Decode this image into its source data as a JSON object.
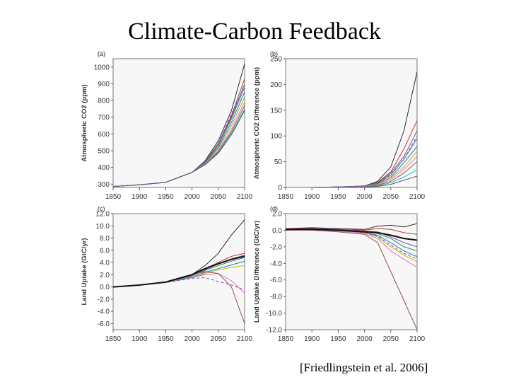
{
  "slide": {
    "title": "Climate-Carbon Feedback",
    "citation": "[Friedlingstein et al. 2006]"
  },
  "palette": [
    "#2b2b2b",
    "#c0392b",
    "#7a4fb0",
    "#2e8b57",
    "#1f77b4",
    "#c9b400",
    "#e377c2",
    "#8c564b",
    "#17becf",
    "#555555",
    "#d62728"
  ],
  "chart_data": [
    {
      "type": "line",
      "panel_label": "(a)",
      "ylabel": "Atmospheric CO2 (ppm)",
      "xlim": [
        1850,
        2100
      ],
      "ylim": [
        280,
        1050
      ],
      "xticks": [
        "1850",
        "1900",
        "1950",
        "2000",
        "2050",
        "2100"
      ],
      "yticks": [
        "300",
        "400",
        "500",
        "600",
        "700",
        "800",
        "900",
        "1000"
      ],
      "x": [
        1850,
        1900,
        1950,
        2000,
        2025,
        2050,
        2075,
        2100
      ],
      "series": [
        {
          "values": [
            286,
            296,
            311,
            370,
            440,
            560,
            740,
            1020
          ]
        },
        {
          "values": [
            286,
            296,
            311,
            370,
            435,
            545,
            710,
            930
          ]
        },
        {
          "values": [
            286,
            296,
            311,
            370,
            432,
            540,
            700,
            900
          ]
        },
        {
          "values": [
            286,
            296,
            311,
            370,
            430,
            530,
            690,
            880
          ]
        },
        {
          "values": [
            286,
            296,
            311,
            370,
            428,
            520,
            670,
            850
          ]
        },
        {
          "values": [
            286,
            296,
            311,
            370,
            425,
            510,
            650,
            820
          ]
        },
        {
          "values": [
            286,
            296,
            311,
            370,
            422,
            500,
            630,
            790
          ]
        },
        {
          "values": [
            286,
            296,
            311,
            370,
            420,
            495,
            615,
            770
          ]
        },
        {
          "values": [
            286,
            296,
            311,
            370,
            418,
            490,
            605,
            750
          ]
        },
        {
          "values": [
            286,
            296,
            311,
            370,
            416,
            485,
            595,
            740
          ]
        },
        {
          "values": [
            286,
            296,
            311,
            370,
            430,
            540,
            720,
            890
          ],
          "dashed": true
        }
      ]
    },
    {
      "type": "line",
      "panel_label": "(b)",
      "ylabel": "Atmospheric CO2 Difference (ppm)",
      "xlim": [
        1850,
        2100
      ],
      "ylim": [
        0,
        250
      ],
      "xticks": [
        "1850",
        "1900",
        "1950",
        "2000",
        "2050",
        "2100"
      ],
      "yticks": [
        "0",
        "50",
        "100",
        "150",
        "200",
        "250"
      ],
      "x": [
        1850,
        1900,
        1950,
        2000,
        2025,
        2050,
        2075,
        2100
      ],
      "series": [
        {
          "values": [
            0,
            0,
            1,
            3,
            12,
            40,
            110,
            225
          ]
        },
        {
          "values": [
            0,
            0,
            1,
            3,
            10,
            30,
            75,
            130
          ]
        },
        {
          "values": [
            0,
            0,
            1,
            2,
            9,
            28,
            60,
            110
          ]
        },
        {
          "values": [
            0,
            0,
            1,
            2,
            8,
            24,
            55,
            95
          ]
        },
        {
          "values": [
            0,
            0,
            1,
            2,
            7,
            20,
            48,
            80
          ]
        },
        {
          "values": [
            0,
            0,
            0,
            2,
            6,
            18,
            40,
            70
          ]
        },
        {
          "values": [
            0,
            0,
            0,
            2,
            5,
            15,
            35,
            60
          ]
        },
        {
          "values": [
            0,
            0,
            0,
            1,
            4,
            12,
            28,
            50
          ]
        },
        {
          "values": [
            0,
            0,
            0,
            1,
            3,
            9,
            20,
            35
          ]
        },
        {
          "values": [
            0,
            0,
            0,
            1,
            2,
            6,
            14,
            22
          ]
        },
        {
          "values": [
            0,
            0,
            1,
            3,
            9,
            25,
            55,
            100
          ],
          "dashed": true
        }
      ]
    },
    {
      "type": "line",
      "panel_label": "(c)",
      "ylabel": "Land Uptake (GtC/yr)",
      "xlim": [
        1850,
        2100
      ],
      "ylim": [
        -7,
        12
      ],
      "xticks": [
        "1850",
        "1900",
        "1950",
        "2000",
        "2050",
        "2100"
      ],
      "yticks": [
        "-6.0",
        "-4.0",
        "-2.0",
        "0.0",
        "2.0",
        "4.0",
        "6.0",
        "8.0",
        "10.0",
        "12.0"
      ],
      "x": [
        1850,
        1900,
        1950,
        2000,
        2025,
        2050,
        2075,
        2100
      ],
      "series": [
        {
          "values": [
            0,
            0.3,
            0.8,
            2.0,
            3.5,
            5.5,
            8.5,
            11.0
          ]
        },
        {
          "values": [
            0,
            0.3,
            0.8,
            2.0,
            3.0,
            4.0,
            5.0,
            5.5
          ]
        },
        {
          "values": [
            0,
            0.3,
            0.8,
            1.8,
            2.8,
            3.8,
            4.6,
            5.2
          ]
        },
        {
          "values": [
            0,
            0.3,
            0.8,
            1.8,
            2.7,
            3.5,
            4.2,
            4.8
          ]
        },
        {
          "values": [
            0,
            0.3,
            0.8,
            1.6,
            2.4,
            3.0,
            3.6,
            4.2
          ]
        },
        {
          "values": [
            0,
            0.3,
            0.7,
            1.5,
            2.2,
            2.8,
            3.2,
            3.5
          ]
        },
        {
          "values": [
            0,
            0.3,
            0.7,
            1.5,
            2.0,
            2.2,
            1.0,
            -1.0
          ]
        },
        {
          "values": [
            0,
            0.3,
            0.8,
            2.0,
            2.5,
            2.2,
            0,
            -6.0
          ]
        },
        {
          "values": [
            0,
            0.3,
            0.7,
            1.4,
            1.5,
            0.9,
            0.3,
            -0.5
          ],
          "dashed": true
        },
        {
          "values": [
            0,
            0.3,
            0.8,
            2.0,
            3.0,
            3.8,
            4.5,
            5.0
          ],
          "thick": true
        }
      ]
    },
    {
      "type": "line",
      "panel_label": "(d)",
      "ylabel": "Land Uptake Difference (GtC/yr)",
      "xlim": [
        1850,
        2100
      ],
      "ylim": [
        -12,
        2
      ],
      "xticks": [
        "1850",
        "1900",
        "1950",
        "2000",
        "2050",
        "2100"
      ],
      "yticks": [
        "-12.0",
        "-10.0",
        "-8.0",
        "-6.0",
        "-4.0",
        "-2.0",
        "0.0",
        "2.0"
      ],
      "x": [
        1850,
        1900,
        1950,
        2000,
        2025,
        2050,
        2075,
        2100
      ],
      "series": [
        {
          "values": [
            0.2,
            0.3,
            0.2,
            0.1,
            0.5,
            0.6,
            0.4,
            0.8
          ]
        },
        {
          "values": [
            0.2,
            0.2,
            0.1,
            0.0,
            0.2,
            0.1,
            -0.3,
            -0.5
          ]
        },
        {
          "values": [
            0.1,
            0.2,
            0.1,
            -0.1,
            -0.2,
            -0.8,
            -1.5,
            -2.0
          ]
        },
        {
          "values": [
            0.1,
            0.1,
            0.0,
            -0.2,
            -0.4,
            -1.0,
            -2.0,
            -2.5
          ]
        },
        {
          "values": [
            0.1,
            0.1,
            0.0,
            -0.3,
            -0.6,
            -1.5,
            -2.5,
            -3.2
          ]
        },
        {
          "values": [
            0.1,
            0.1,
            0.0,
            -0.3,
            -0.8,
            -2.0,
            -3.0,
            -3.8
          ]
        },
        {
          "values": [
            0.0,
            0.1,
            -0.1,
            -0.4,
            -1.0,
            -2.5,
            -3.5,
            -4.5
          ]
        },
        {
          "values": [
            0.0,
            0.0,
            -0.2,
            -0.5,
            -1.5,
            -5.0,
            -8.5,
            -12.0
          ]
        },
        {
          "values": [
            0.0,
            0.1,
            0.0,
            -0.3,
            -0.7,
            -1.8,
            -2.8,
            -3.5
          ],
          "dashed": true
        },
        {
          "values": [
            0.1,
            0.1,
            0.0,
            -0.2,
            -0.3,
            -0.6,
            -1.0,
            -1.2
          ],
          "thick": true
        }
      ]
    }
  ]
}
